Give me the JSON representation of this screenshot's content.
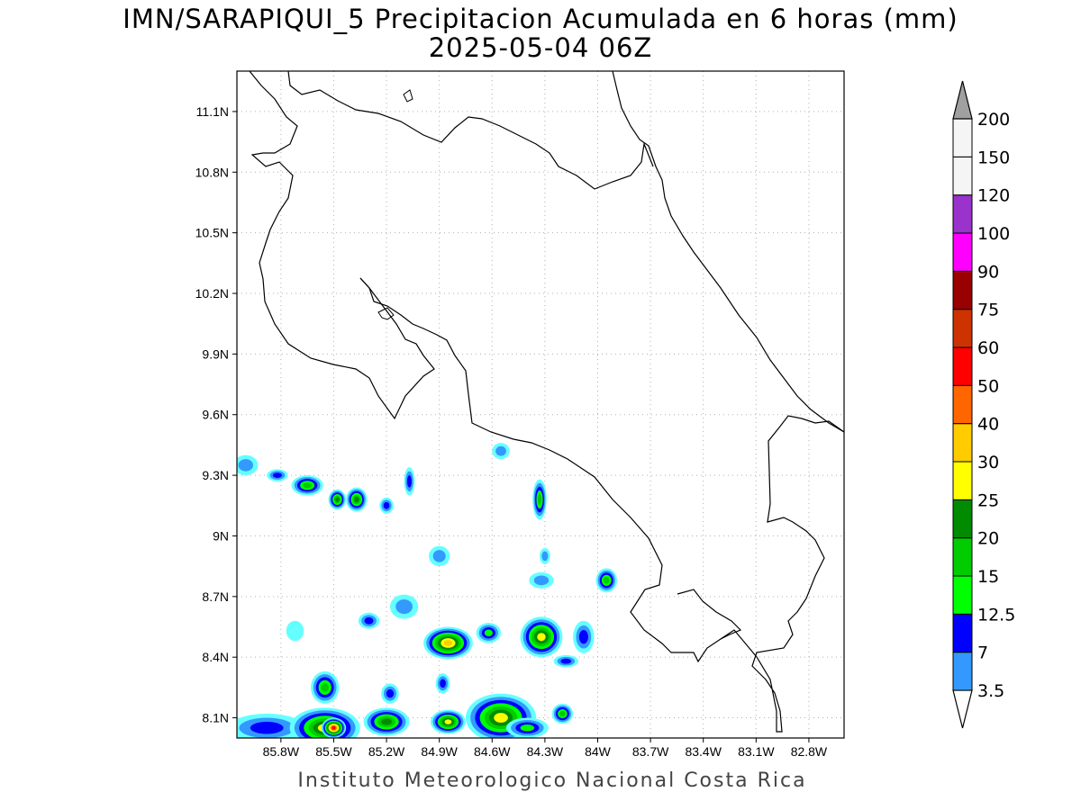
{
  "title": {
    "line1": "IMN/SARAPIQUI_5 Precipitacion Acumulada en 6 horas (mm)",
    "line2": "2025-05-04 06Z"
  },
  "footer": "Instituto Meteorologico Nacional Costa Rica",
  "map": {
    "lon_range": [
      -86.05,
      -82.6
    ],
    "lat_range": [
      8.0,
      11.3
    ],
    "lat_ticks": [
      {
        "value": 8.1,
        "label": "8.1N"
      },
      {
        "value": 8.4,
        "label": "8.4N"
      },
      {
        "value": 8.7,
        "label": "8.7N"
      },
      {
        "value": 9.0,
        "label": "9N"
      },
      {
        "value": 9.3,
        "label": "9.3N"
      },
      {
        "value": 9.6,
        "label": "9.6N"
      },
      {
        "value": 9.9,
        "label": "9.9N"
      },
      {
        "value": 10.2,
        "label": "10.2N"
      },
      {
        "value": 10.5,
        "label": "10.5N"
      },
      {
        "value": 10.8,
        "label": "10.8N"
      },
      {
        "value": 11.1,
        "label": "11.1N"
      }
    ],
    "lon_ticks": [
      {
        "value": -85.8,
        "label": "85.8W"
      },
      {
        "value": -85.5,
        "label": "85.5W"
      },
      {
        "value": -85.2,
        "label": "85.2W"
      },
      {
        "value": -84.9,
        "label": "84.9W"
      },
      {
        "value": -84.6,
        "label": "84.6W"
      },
      {
        "value": -84.3,
        "label": "84.3W"
      },
      {
        "value": -84.0,
        "label": "84W"
      },
      {
        "value": -83.7,
        "label": "83.7W"
      },
      {
        "value": -83.4,
        "label": "83.4W"
      },
      {
        "value": -83.1,
        "label": "83.1W"
      },
      {
        "value": -82.8,
        "label": "82.8W"
      }
    ],
    "grid": true,
    "precip_cells_mm": [
      {
        "lon": -86.0,
        "lat": 9.35,
        "rx": 0.07,
        "ry": 0.05,
        "mm": 7
      },
      {
        "lon": -85.82,
        "lat": 9.3,
        "rx": 0.06,
        "ry": 0.03,
        "mm": 12.5
      },
      {
        "lon": -85.65,
        "lat": 9.25,
        "rx": 0.09,
        "ry": 0.05,
        "mm": 20
      },
      {
        "lon": -85.48,
        "lat": 9.18,
        "rx": 0.05,
        "ry": 0.05,
        "mm": 25
      },
      {
        "lon": -85.37,
        "lat": 9.18,
        "rx": 0.06,
        "ry": 0.06,
        "mm": 25
      },
      {
        "lon": -85.2,
        "lat": 9.15,
        "rx": 0.04,
        "ry": 0.04,
        "mm": 12.5
      },
      {
        "lon": -85.07,
        "lat": 9.27,
        "rx": 0.03,
        "ry": 0.07,
        "mm": 12.5
      },
      {
        "lon": -84.55,
        "lat": 9.42,
        "rx": 0.05,
        "ry": 0.04,
        "mm": 7
      },
      {
        "lon": -84.33,
        "lat": 9.18,
        "rx": 0.04,
        "ry": 0.1,
        "mm": 20
      },
      {
        "lon": -84.9,
        "lat": 8.9,
        "rx": 0.06,
        "ry": 0.05,
        "mm": 7
      },
      {
        "lon": -84.3,
        "lat": 8.9,
        "rx": 0.03,
        "ry": 0.04,
        "mm": 7
      },
      {
        "lon": -84.32,
        "lat": 8.78,
        "rx": 0.07,
        "ry": 0.04,
        "mm": 7
      },
      {
        "lon": -83.95,
        "lat": 8.78,
        "rx": 0.06,
        "ry": 0.06,
        "mm": 20
      },
      {
        "lon": -85.1,
        "lat": 8.65,
        "rx": 0.08,
        "ry": 0.06,
        "mm": 7
      },
      {
        "lon": -85.3,
        "lat": 8.58,
        "rx": 0.06,
        "ry": 0.04,
        "mm": 12.5
      },
      {
        "lon": -85.72,
        "lat": 8.53,
        "rx": 0.05,
        "ry": 0.05,
        "mm": 3.5
      },
      {
        "lon": -84.85,
        "lat": 8.47,
        "rx": 0.14,
        "ry": 0.08,
        "mm": 40
      },
      {
        "lon": -84.62,
        "lat": 8.52,
        "rx": 0.07,
        "ry": 0.05,
        "mm": 15
      },
      {
        "lon": -84.32,
        "lat": 8.5,
        "rx": 0.12,
        "ry": 0.1,
        "mm": 30
      },
      {
        "lon": -84.08,
        "lat": 8.5,
        "rx": 0.06,
        "ry": 0.08,
        "mm": 12.5
      },
      {
        "lon": -84.18,
        "lat": 8.38,
        "rx": 0.07,
        "ry": 0.03,
        "mm": 12.5
      },
      {
        "lon": -85.55,
        "lat": 8.25,
        "rx": 0.08,
        "ry": 0.08,
        "mm": 20
      },
      {
        "lon": -85.18,
        "lat": 8.22,
        "rx": 0.05,
        "ry": 0.05,
        "mm": 12.5
      },
      {
        "lon": -84.88,
        "lat": 8.27,
        "rx": 0.04,
        "ry": 0.05,
        "mm": 12.5
      },
      {
        "lon": -85.88,
        "lat": 8.05,
        "rx": 0.22,
        "ry": 0.07,
        "mm": 12.5
      },
      {
        "lon": -85.55,
        "lat": 8.05,
        "rx": 0.2,
        "ry": 0.1,
        "mm": 30
      },
      {
        "lon": -85.5,
        "lat": 8.05,
        "rx": 0.07,
        "ry": 0.05,
        "mm": 60
      },
      {
        "lon": -85.2,
        "lat": 8.08,
        "rx": 0.13,
        "ry": 0.07,
        "mm": 25
      },
      {
        "lon": -84.85,
        "lat": 8.08,
        "rx": 0.1,
        "ry": 0.06,
        "mm": 30
      },
      {
        "lon": -84.55,
        "lat": 8.1,
        "rx": 0.2,
        "ry": 0.12,
        "mm": 30
      },
      {
        "lon": -84.2,
        "lat": 8.12,
        "rx": 0.06,
        "ry": 0.05,
        "mm": 20
      },
      {
        "lon": -84.4,
        "lat": 8.05,
        "rx": 0.12,
        "ry": 0.05,
        "mm": 15
      }
    ]
  },
  "colorbar": {
    "levels": [
      {
        "label": "3.5",
        "color": "#66ffff"
      },
      {
        "label": "7",
        "color": "#3399ff"
      },
      {
        "label": "12.5",
        "color": "#0000ff"
      },
      {
        "label": "15",
        "color": "#00ff00"
      },
      {
        "label": "20",
        "color": "#00cc00"
      },
      {
        "label": "25",
        "color": "#008b00"
      },
      {
        "label": "30",
        "color": "#ffff00"
      },
      {
        "label": "40",
        "color": "#ffcc00"
      },
      {
        "label": "50",
        "color": "#ff6600"
      },
      {
        "label": "60",
        "color": "#ff0000"
      },
      {
        "label": "75",
        "color": "#cc3300"
      },
      {
        "label": "90",
        "color": "#990000"
      },
      {
        "label": "100",
        "color": "#ff00ff"
      },
      {
        "label": "120",
        "color": "#9933cc"
      },
      {
        "label": "150",
        "color": "#f5f5f5"
      },
      {
        "label": "200",
        "color": "#a0a0a0"
      }
    ]
  }
}
